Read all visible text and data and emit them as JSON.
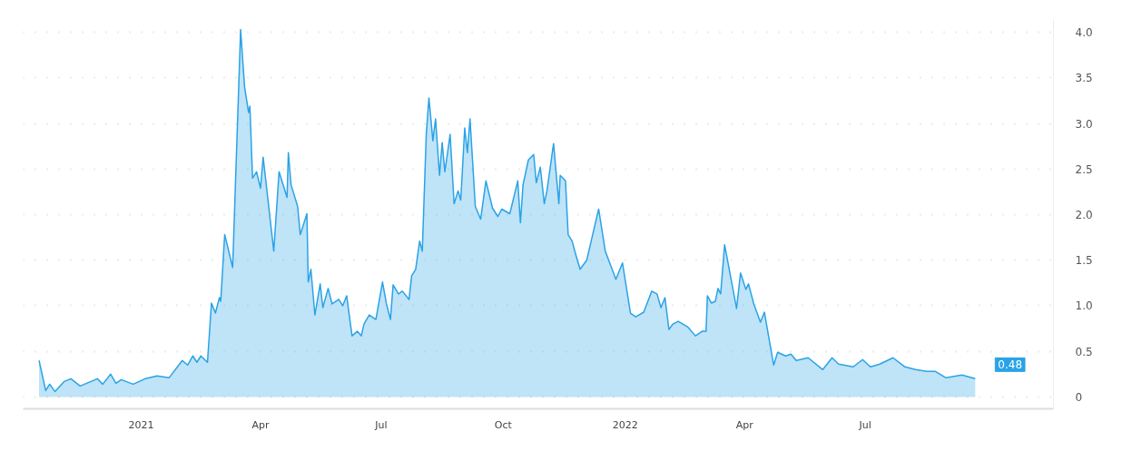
{
  "chart_data": {
    "type": "area",
    "xlim": [
      "2020-10-04",
      "2022-11-20"
    ],
    "ylim": [
      -0.13,
      4.15
    ],
    "xticks": [
      {
        "value": "2021-01-01",
        "label": "2021"
      },
      {
        "value": "2021-04-01",
        "label": "Apr"
      },
      {
        "value": "2021-07-01",
        "label": "Jul"
      },
      {
        "value": "2021-10-01",
        "label": "Oct"
      },
      {
        "value": "2022-01-01",
        "label": "2022"
      },
      {
        "value": "2022-04-01",
        "label": "Apr"
      },
      {
        "value": "2022-07-01",
        "label": "Jul"
      }
    ],
    "yticks": [
      {
        "value": 0,
        "label": "0"
      },
      {
        "value": 0.5,
        "label": "0.5"
      },
      {
        "value": 1,
        "label": "1.0"
      },
      {
        "value": 1.5,
        "label": "1.5"
      },
      {
        "value": 2,
        "label": "2.0"
      },
      {
        "value": 2.5,
        "label": "2.5"
      },
      {
        "value": 3,
        "label": "3.0"
      },
      {
        "value": 3.5,
        "label": "3.5"
      },
      {
        "value": 4,
        "label": "4.0"
      }
    ],
    "grid": "y",
    "annotations": [
      "0.48"
    ],
    "series": [
      {
        "color": "#2aa3e6",
        "x": [
          "2020-10-16",
          "2020-10-21",
          "2020-10-24",
          "2020-10-28",
          "2020-11-04",
          "2020-11-09",
          "2020-11-16",
          "2020-11-29",
          "2020-12-03",
          "2020-12-09",
          "2020-12-13",
          "2020-12-17",
          "2020-12-26",
          "2021-01-04",
          "2021-01-13",
          "2021-01-22",
          "2021-02-01",
          "2021-02-05",
          "2021-02-09",
          "2021-02-12",
          "2021-02-15",
          "2021-02-20",
          "2021-02-23",
          "2021-02-26",
          "2021-03-01",
          "2021-03-02",
          "2021-03-05",
          "2021-03-11",
          "2021-03-17",
          "2021-03-20",
          "2021-03-23",
          "2021-03-24",
          "2021-03-26",
          "2021-03-29",
          "2021-04-01",
          "2021-04-03",
          "2021-04-11",
          "2021-04-15",
          "2021-04-21",
          "2021-04-22",
          "2021-04-24",
          "2021-04-29",
          "2021-05-01",
          "2021-05-06",
          "2021-05-07",
          "2021-05-09",
          "2021-05-12",
          "2021-05-16",
          "2021-05-18",
          "2021-05-22",
          "2021-05-25",
          "2021-05-30",
          "2021-06-02",
          "2021-06-05",
          "2021-06-09",
          "2021-06-13",
          "2021-06-16",
          "2021-06-18",
          "2021-06-22",
          "2021-06-27",
          "2021-07-02",
          "2021-07-05",
          "2021-07-08",
          "2021-07-10",
          "2021-07-14",
          "2021-07-17",
          "2021-07-22",
          "2021-07-24",
          "2021-07-27",
          "2021-07-30",
          "2021-08-01",
          "2021-08-04",
          "2021-08-06",
          "2021-08-09",
          "2021-08-11",
          "2021-08-14",
          "2021-08-16",
          "2021-08-18",
          "2021-08-22",
          "2021-08-25",
          "2021-08-28",
          "2021-08-30",
          "2021-09-02",
          "2021-09-04",
          "2021-09-06",
          "2021-09-10",
          "2021-09-14",
          "2021-09-18",
          "2021-09-23",
          "2021-09-27",
          "2021-09-30",
          "2021-10-06",
          "2021-10-12",
          "2021-10-14",
          "2021-10-16",
          "2021-10-20",
          "2021-10-24",
          "2021-10-26",
          "2021-10-29",
          "2021-11-01",
          "2021-11-03",
          "2021-11-08",
          "2021-11-12",
          "2021-11-13",
          "2021-11-17",
          "2021-11-19",
          "2021-11-22",
          "2021-11-24",
          "2021-11-28",
          "2021-12-03",
          "2021-12-07",
          "2021-12-12",
          "2021-12-17",
          "2021-12-25",
          "2021-12-30",
          "2022-01-05",
          "2022-01-09",
          "2022-01-15",
          "2022-01-21",
          "2022-01-25",
          "2022-01-28",
          "2022-01-31",
          "2022-02-03",
          "2022-02-06",
          "2022-02-10",
          "2022-02-17",
          "2022-02-23",
          "2022-02-28",
          "2022-03-03",
          "2022-03-04",
          "2022-03-07",
          "2022-03-10",
          "2022-03-12",
          "2022-03-14",
          "2022-03-17",
          "2022-03-26",
          "2022-03-29",
          "2022-04-02",
          "2022-04-04",
          "2022-04-08",
          "2022-04-13",
          "2022-04-16",
          "2022-04-23",
          "2022-04-26",
          "2022-05-02",
          "2022-05-06",
          "2022-05-10",
          "2022-05-19",
          "2022-05-30",
          "2022-06-06",
          "2022-06-11",
          "2022-06-22",
          "2022-06-29",
          "2022-07-05",
          "2022-07-12",
          "2022-07-22",
          "2022-07-31",
          "2022-08-08",
          "2022-08-17",
          "2022-08-23",
          "2022-08-31",
          "2022-09-12",
          "2022-09-22"
        ],
        "values": [
          0.4,
          0.07,
          0.14,
          0.06,
          0.17,
          0.2,
          0.12,
          0.2,
          0.14,
          0.25,
          0.15,
          0.19,
          0.14,
          0.2,
          0.23,
          0.21,
          0.4,
          0.35,
          0.45,
          0.38,
          0.45,
          0.38,
          1.03,
          0.92,
          1.09,
          1.05,
          1.78,
          1.42,
          4.03,
          3.4,
          3.12,
          3.19,
          2.4,
          2.47,
          2.29,
          2.63,
          1.6,
          2.47,
          2.19,
          2.68,
          2.33,
          2.09,
          1.78,
          2.01,
          1.26,
          1.4,
          0.9,
          1.24,
          0.98,
          1.19,
          1.02,
          1.07,
          1.0,
          1.11,
          0.67,
          0.72,
          0.67,
          0.8,
          0.9,
          0.85,
          1.26,
          1.02,
          0.85,
          1.23,
          1.13,
          1.16,
          1.07,
          1.33,
          1.4,
          1.71,
          1.6,
          2.88,
          3.28,
          2.81,
          3.05,
          2.43,
          2.79,
          2.47,
          2.88,
          2.12,
          2.26,
          2.16,
          2.95,
          2.68,
          3.05,
          2.09,
          1.95,
          2.37,
          2.07,
          1.98,
          2.06,
          2.01,
          2.37,
          1.91,
          2.33,
          2.6,
          2.66,
          2.35,
          2.52,
          2.12,
          2.26,
          2.78,
          2.12,
          2.43,
          2.37,
          1.78,
          1.71,
          1.6,
          1.4,
          1.5,
          1.75,
          2.06,
          1.6,
          1.29,
          1.47,
          0.92,
          0.88,
          0.93,
          1.16,
          1.13,
          0.98,
          1.09,
          0.74,
          0.8,
          0.83,
          0.77,
          0.67,
          0.72,
          0.72,
          1.11,
          1.03,
          1.05,
          1.19,
          1.13,
          1.67,
          0.97,
          1.36,
          1.18,
          1.24,
          1.02,
          0.82,
          0.93,
          0.35,
          0.49,
          0.45,
          0.47,
          0.4,
          0.43,
          0.3,
          0.43,
          0.36,
          0.33,
          0.41,
          0.33,
          0.36,
          0.43,
          0.33,
          0.3,
          0.28,
          0.28,
          0.21,
          0.24,
          0.2
        ]
      }
    ]
  }
}
